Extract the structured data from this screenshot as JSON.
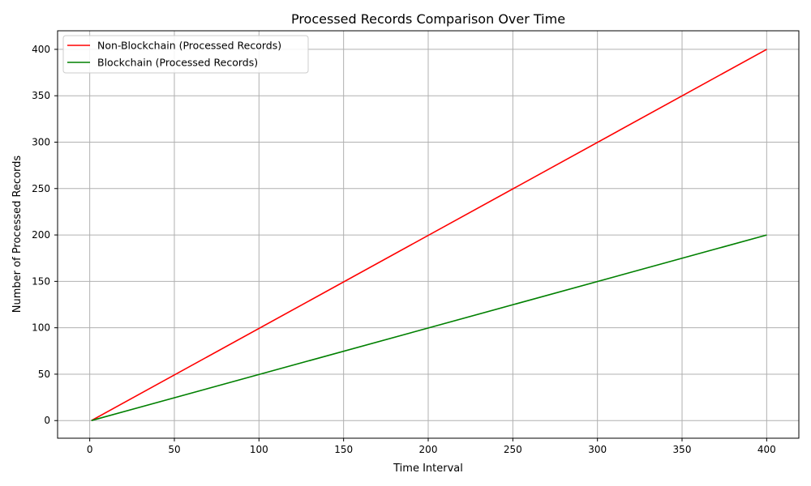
{
  "chart_data": {
    "type": "line",
    "title": "Processed Records Comparison Over Time",
    "xlabel": "Time Interval",
    "ylabel": "Number of Processed Records",
    "xlim": [
      -19,
      419
    ],
    "ylim": [
      -19,
      420
    ],
    "xticks": [
      0,
      50,
      100,
      150,
      200,
      250,
      300,
      350,
      400
    ],
    "yticks": [
      0,
      50,
      100,
      150,
      200,
      250,
      300,
      350,
      400
    ],
    "grid": true,
    "legend_position": "top-left",
    "series": [
      {
        "name": "Non-Blockchain (Processed Records)",
        "color": "#ff0000",
        "x": [
          1,
          400
        ],
        "y": [
          0,
          400
        ]
      },
      {
        "name": "Blockchain (Processed Records)",
        "color": "#008000",
        "x": [
          1,
          400
        ],
        "y": [
          0,
          200
        ]
      }
    ]
  }
}
